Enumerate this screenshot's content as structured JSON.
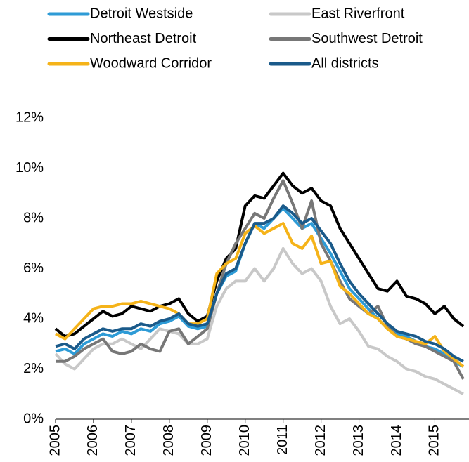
{
  "chart_data": {
    "type": "line",
    "x": [
      2005,
      2005.25,
      2005.5,
      2005.75,
      2006,
      2006.25,
      2006.5,
      2006.75,
      2007,
      2007.25,
      2007.5,
      2007.75,
      2008,
      2008.25,
      2008.5,
      2008.75,
      2009,
      2009.25,
      2009.5,
      2009.75,
      2010,
      2010.25,
      2010.5,
      2010.75,
      2011,
      2011.25,
      2011.5,
      2011.75,
      2012,
      2012.25,
      2012.5,
      2012.75,
      2013,
      2013.25,
      2013.5,
      2013.75,
      2014,
      2014.25,
      2014.5,
      2014.75,
      2015,
      2015.25,
      2015.5,
      2015.75
    ],
    "series": [
      {
        "name": "Detroit Westside",
        "color": "#2e9bd6",
        "values": [
          2.7,
          2.8,
          2.6,
          3.0,
          3.2,
          3.4,
          3.3,
          3.5,
          3.4,
          3.6,
          3.5,
          3.8,
          3.9,
          4.1,
          3.7,
          3.6,
          3.7,
          5.0,
          5.7,
          5.9,
          7.0,
          7.8,
          7.6,
          8.0,
          8.4,
          8.0,
          7.6,
          7.8,
          7.2,
          6.6,
          5.9,
          5.2,
          4.8,
          4.4,
          4.0,
          3.6,
          3.4,
          3.3,
          3.1,
          2.9,
          2.8,
          2.6,
          2.3,
          2.1
        ]
      },
      {
        "name": "East Riverfront",
        "color": "#c8c8c8",
        "values": [
          2.6,
          2.2,
          2.0,
          2.4,
          2.8,
          3.0,
          3.0,
          3.2,
          3.0,
          2.8,
          3.2,
          3.6,
          3.5,
          3.4,
          3.0,
          3.0,
          3.2,
          4.5,
          5.2,
          5.5,
          5.5,
          6.0,
          5.5,
          6.0,
          6.8,
          6.2,
          5.8,
          6.0,
          5.5,
          4.5,
          3.8,
          4.0,
          3.5,
          2.9,
          2.8,
          2.5,
          2.3,
          2.0,
          1.9,
          1.7,
          1.6,
          1.4,
          1.2,
          1.0
        ]
      },
      {
        "name": "Northeast Detroit",
        "color": "#000000",
        "values": [
          3.6,
          3.3,
          3.4,
          3.7,
          4.0,
          4.3,
          4.1,
          4.2,
          4.5,
          4.4,
          4.3,
          4.5,
          4.6,
          4.8,
          4.2,
          3.9,
          4.1,
          5.5,
          6.4,
          6.8,
          8.5,
          8.9,
          8.8,
          9.3,
          9.8,
          9.3,
          9.0,
          9.2,
          8.7,
          8.5,
          7.6,
          7.0,
          6.4,
          5.8,
          5.2,
          5.1,
          5.5,
          4.9,
          4.8,
          4.6,
          4.2,
          4.5,
          4.0,
          3.7
        ]
      },
      {
        "name": "Southwest Detroit",
        "color": "#777777",
        "values": [
          2.3,
          2.3,
          2.5,
          2.8,
          3.0,
          3.2,
          2.7,
          2.6,
          2.7,
          3.0,
          2.8,
          2.7,
          3.5,
          3.6,
          3.0,
          3.3,
          3.6,
          5.0,
          6.2,
          7.0,
          7.6,
          8.2,
          8.0,
          8.8,
          9.5,
          8.6,
          7.6,
          8.7,
          7.0,
          6.3,
          5.5,
          4.8,
          4.5,
          4.2,
          4.5,
          3.7,
          3.3,
          3.2,
          3.0,
          2.9,
          2.7,
          2.5,
          2.3,
          1.6
        ]
      },
      {
        "name": "Woodward Corridor",
        "color": "#f5b319",
        "values": [
          3.4,
          3.2,
          3.6,
          4.0,
          4.4,
          4.5,
          4.5,
          4.6,
          4.6,
          4.7,
          4.6,
          4.5,
          4.4,
          4.2,
          3.8,
          3.8,
          4.0,
          5.8,
          6.2,
          6.4,
          7.4,
          7.7,
          7.4,
          7.6,
          7.8,
          7.0,
          6.8,
          7.3,
          6.2,
          6.3,
          5.3,
          5.0,
          4.6,
          4.2,
          4.0,
          3.6,
          3.3,
          3.2,
          3.1,
          3.0,
          3.3,
          2.7,
          2.4,
          2.1
        ]
      },
      {
        "name": "All districts",
        "color": "#1a5a8a",
        "values": [
          2.9,
          3.0,
          2.8,
          3.2,
          3.4,
          3.6,
          3.5,
          3.6,
          3.6,
          3.8,
          3.7,
          3.9,
          4.0,
          4.2,
          3.8,
          3.7,
          3.8,
          5.0,
          5.8,
          6.0,
          7.0,
          7.8,
          7.8,
          8.0,
          8.5,
          8.2,
          7.8,
          8.0,
          7.5,
          7.0,
          6.2,
          5.5,
          5.0,
          4.6,
          4.2,
          3.8,
          3.5,
          3.4,
          3.3,
          3.1,
          3.0,
          2.8,
          2.5,
          2.3
        ]
      }
    ],
    "xlim": [
      2005,
      2015.9
    ],
    "xticks": [
      2005,
      2006,
      2007,
      2008,
      2009,
      2010,
      2011,
      2012,
      2013,
      2014,
      2015
    ],
    "ylim": [
      0,
      12
    ],
    "yticks": [
      {
        "value": 0,
        "label": "0%"
      },
      {
        "value": 2,
        "label": "2%"
      },
      {
        "value": 4,
        "label": "4%"
      },
      {
        "value": 6,
        "label": "6%"
      },
      {
        "value": 8,
        "label": "8%"
      },
      {
        "value": 10,
        "label": "10%"
      },
      {
        "value": 12,
        "label": "12%"
      }
    ],
    "grid": false
  }
}
